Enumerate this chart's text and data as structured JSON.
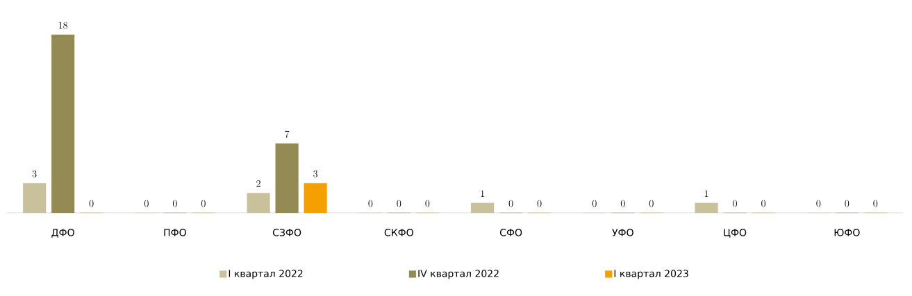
{
  "chart_data": {
    "type": "bar",
    "categories": [
      "ДФО",
      "ПФО",
      "СЗФО",
      "СКФО",
      "СФО",
      "УФО",
      "ЦФО",
      "ЮФО"
    ],
    "series": [
      {
        "name": "I квартал  2022",
        "color": "#c9c19b",
        "values": [
          3,
          0,
          2,
          0,
          1,
          0,
          1,
          0
        ]
      },
      {
        "name": "IV квартал 2022",
        "color": "#948a54",
        "values": [
          18,
          0,
          7,
          0,
          0,
          0,
          0,
          0
        ]
      },
      {
        "name": "I квартал 2023",
        "color": "#f5a000",
        "values": [
          0,
          0,
          3,
          0,
          0,
          0,
          0,
          0
        ]
      }
    ],
    "data_labels": true,
    "legend": "bottom"
  }
}
